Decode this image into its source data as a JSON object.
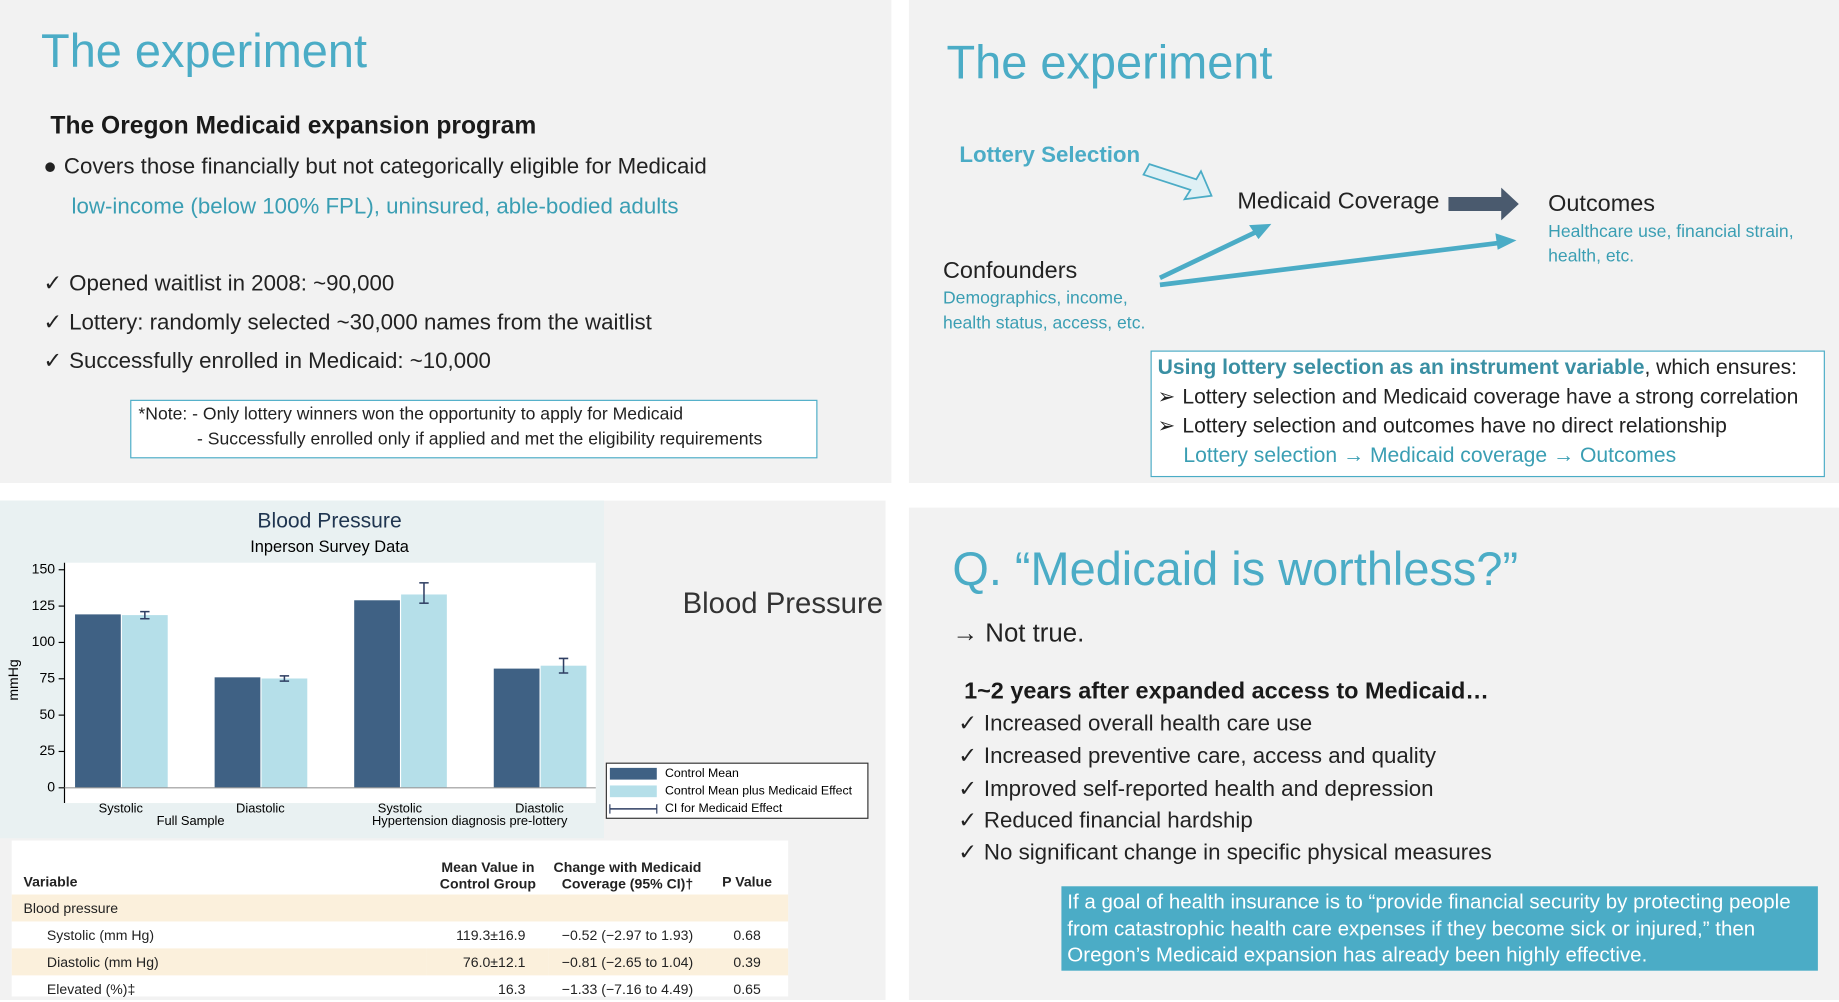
{
  "slide1": {
    "title": "The experiment",
    "subtitle": "The Oregon Medicaid expansion program",
    "bullet": "Covers those financially but not categorically eligible for Medicaid",
    "bullet_detail": "low-income (below 100% FPL), uninsured, able-bodied adults",
    "checks": [
      "Opened waitlist in 2008: ~90,000",
      "Lottery: randomly selected ~30,000 names from the waitlist",
      "Successfully enrolled in Medicaid: ~10,000"
    ],
    "note": [
      "*Note: - Only lottery winners won the opportunity to apply for Medicaid",
      "- Successfully enrolled only if applied and met the eligibility requirements"
    ]
  },
  "slide2": {
    "title": "The experiment",
    "nodes": [
      {
        "label": "Lottery Selection"
      },
      {
        "label": "Medicaid Coverage"
      },
      {
        "label": "Outcomes",
        "detail": [
          "Healthcare use, financial strain,",
          "health, etc."
        ]
      },
      {
        "label": "Confounders",
        "detail": [
          "Demographics, income,",
          "health status, access, etc."
        ]
      }
    ],
    "box": {
      "heading": "Using lottery selection as an instrument variable",
      "heading_rest": ", which ensures:",
      "points": [
        "Lottery selection and Medicaid coverage have a strong correlation",
        "Lottery selection and outcomes have no direct relationship"
      ],
      "path": "Lottery selection → Medicaid coverage → Outcomes"
    }
  },
  "slide3": {
    "label": "Blood Pressure",
    "table": {
      "headers": [
        "Variable",
        "Mean Value in Control Group",
        "Change with Medicaid Coverage (95% CI)†",
        "P Value"
      ],
      "section": "Blood pressure",
      "rows": [
        [
          "Systolic (mm Hg)",
          "119.3±16.9",
          "−0.52 (−2.97 to 1.93)",
          "0.68"
        ],
        [
          "Diastolic (mm Hg)",
          "76.0±12.1",
          "−0.81 (−2.65 to 1.04)",
          "0.39"
        ],
        [
          "Elevated (%)‡",
          "16.3",
          "−1.33 (−7.16 to 4.49)",
          "0.65"
        ]
      ]
    }
  },
  "chart_data": {
    "type": "bar",
    "title": "Blood Pressure",
    "subtitle": "Inperson Survey Data",
    "y_label": "mmHg",
    "categories": [
      "Systolic",
      "Diastolic",
      "Systolic",
      "Diastolic"
    ],
    "group_labels": [
      "Full Sample",
      "Hypertension diagnosis pre-lottery"
    ],
    "series": [
      {
        "name": "Control Mean",
        "color": "#3f6184",
        "values": [
          119.3,
          76.0,
          129,
          82
        ]
      },
      {
        "name": "Control Mean plus Medicaid Effect",
        "color": "#b5dfe9",
        "values": [
          118.8,
          75.2,
          133,
          84
        ],
        "ci_low": [
          116.3,
          73.4,
          127,
          79
        ],
        "ci_high": [
          121.2,
          77.0,
          141,
          89
        ]
      }
    ],
    "error_bar_name": "CI for Medicaid Effect",
    "error_bar_color": "#2f3f63",
    "ylim": [
      0,
      150
    ],
    "yticks": [
      0,
      25,
      50,
      75,
      100,
      125,
      150
    ],
    "grid": false
  },
  "slide4": {
    "title": "Q. “Medicaid is worthless?”",
    "answer": "→ Not true.",
    "subtitle": "1~2 years after expanded access to Medicaid…",
    "checks": [
      "Increased overall health care use",
      "Increased preventive care, access and quality",
      "Improved self-reported health and depression",
      "Reduced financial hardship",
      "No significant change in specific physical measures"
    ],
    "quote": "If a goal of health insurance is to “provide financial security by protecting people from catastrophic health care expenses if they become sick or injured,” then Oregon’s Medicaid expansion has already been highly effective."
  }
}
